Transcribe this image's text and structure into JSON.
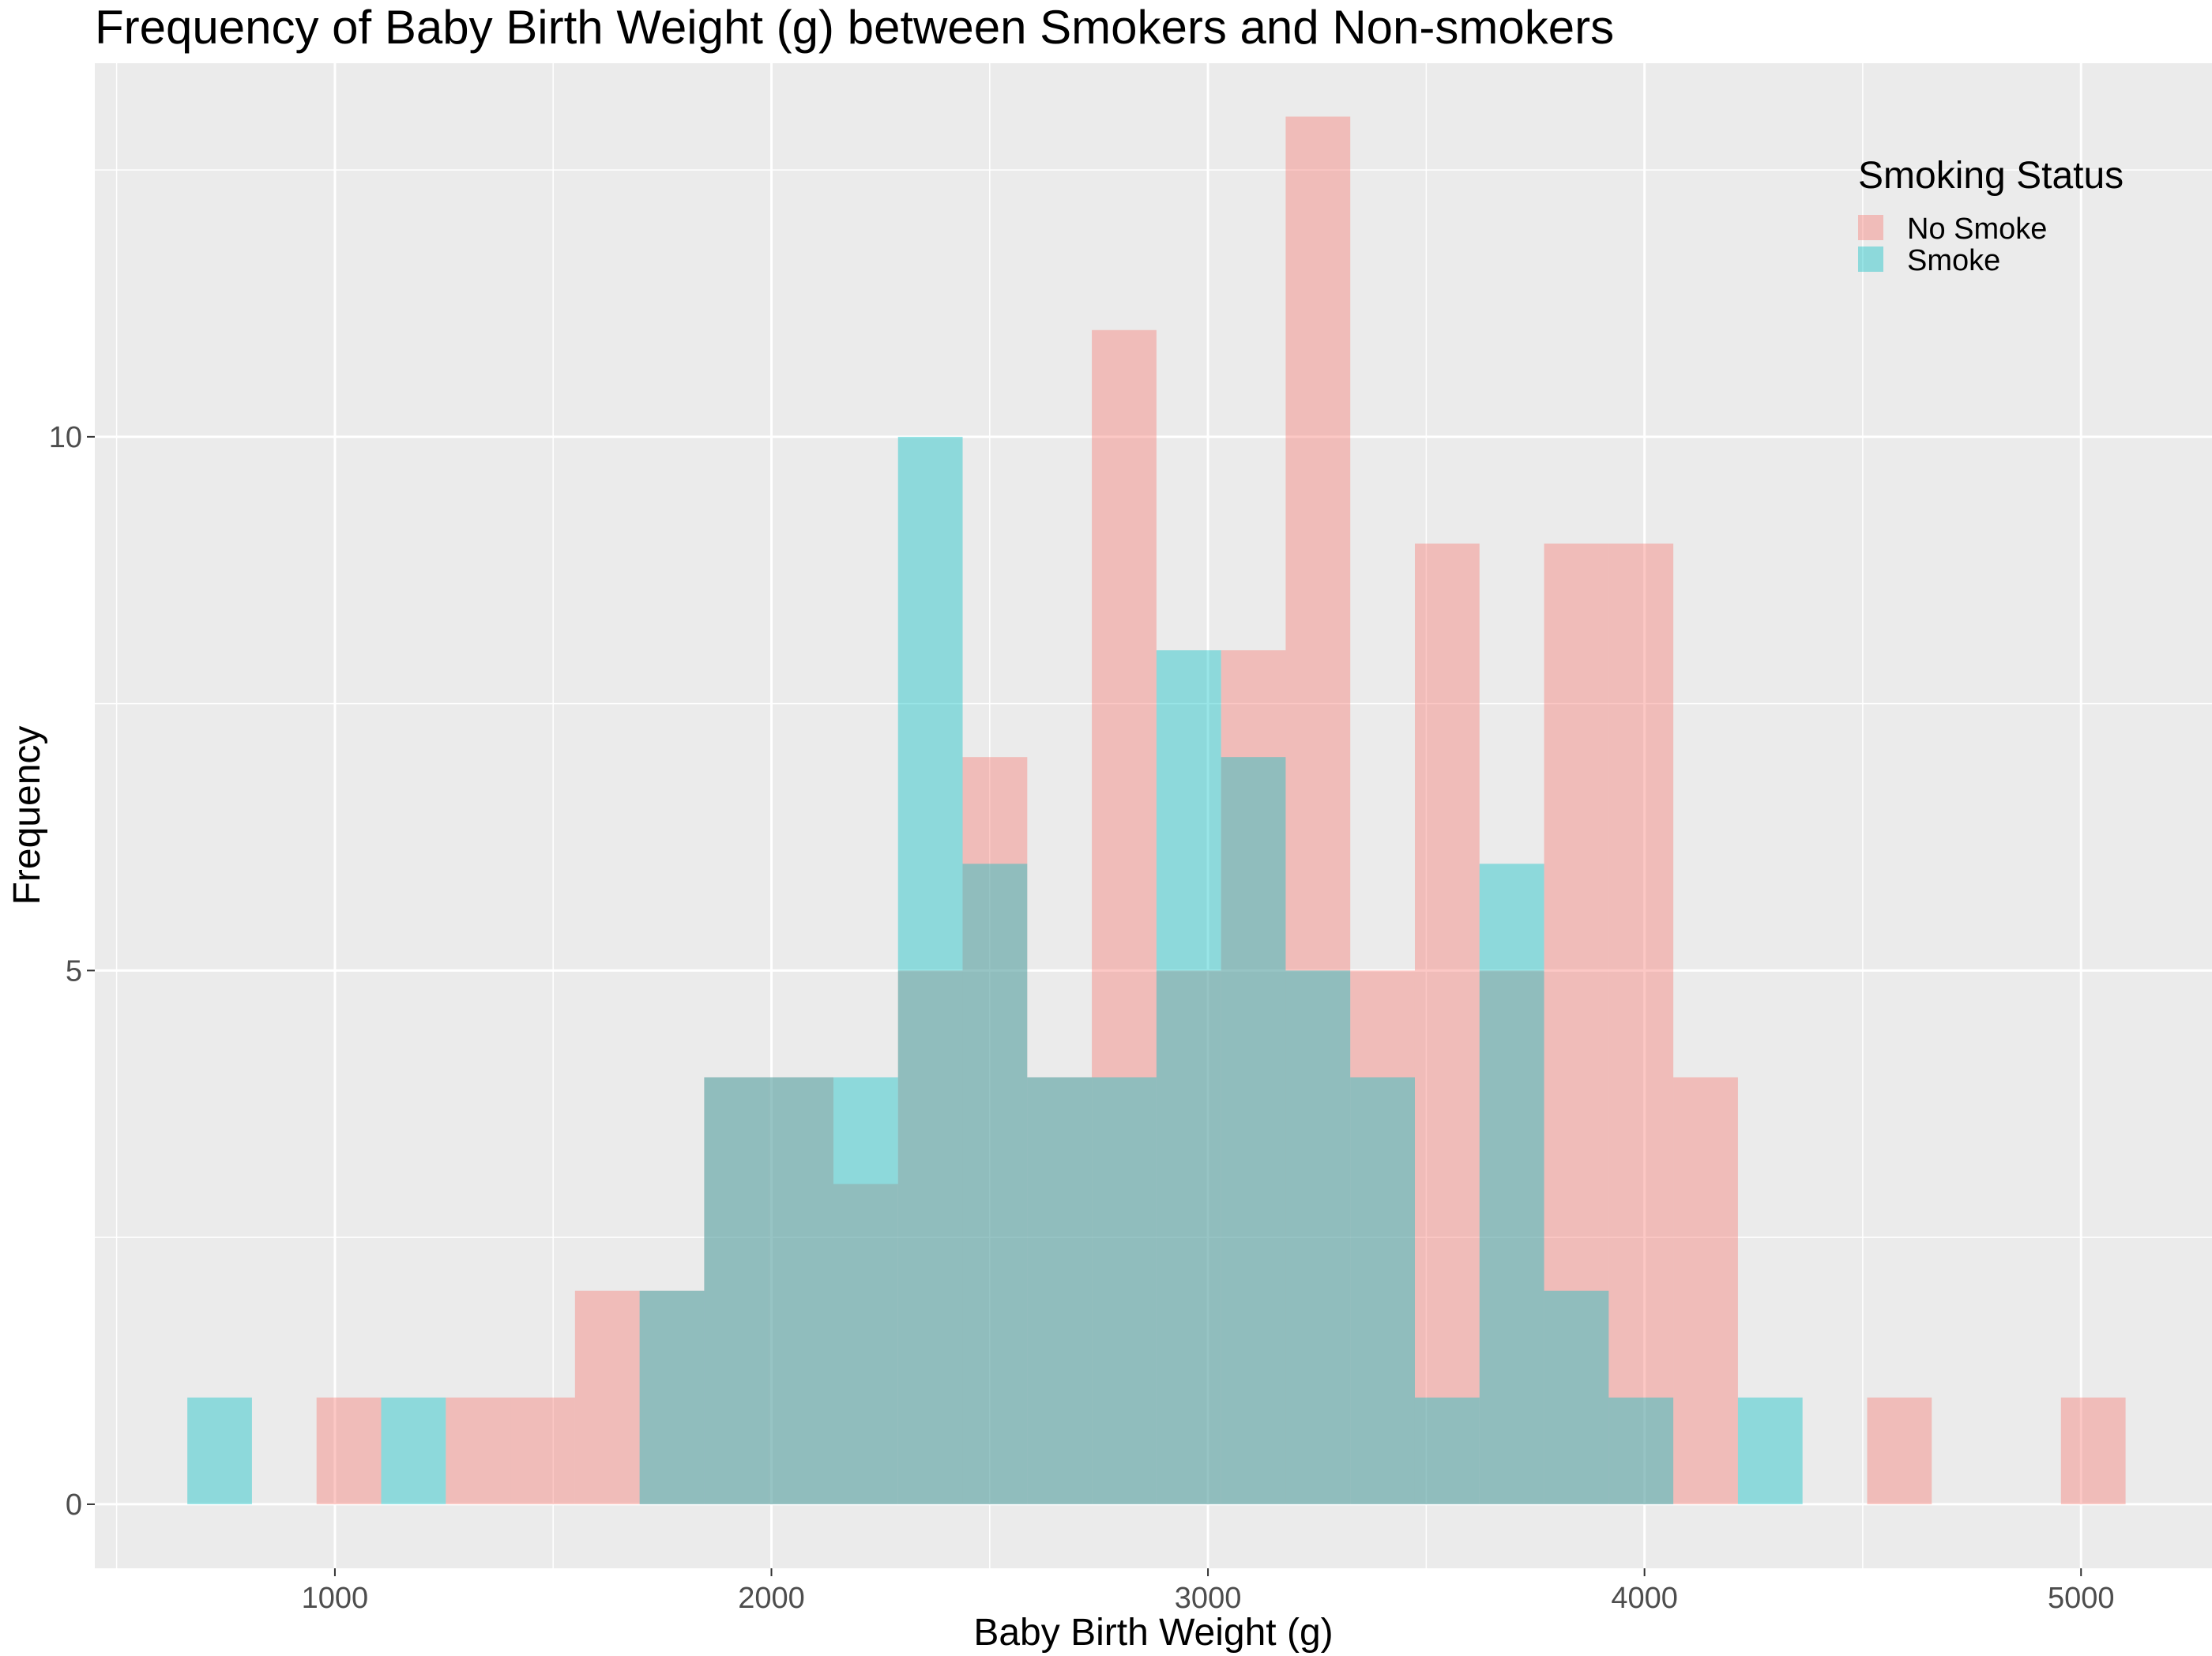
{
  "chart_data": {
    "type": "histogram",
    "title": "Frequency of Baby Birth Weight (g) between Smokers and Non-smokers",
    "xlabel": "Baby Birth Weight (g)",
    "ylabel": "Frequency",
    "xlim": [
      450,
      5300
    ],
    "ylim": [
      -0.6,
      13.5
    ],
    "x_ticks": [
      1000,
      2000,
      3000,
      4000,
      5000
    ],
    "y_ticks": [
      0,
      5,
      10
    ],
    "bin_width": 148,
    "bin_starts": [
      662,
      810,
      958,
      1106,
      1254,
      1402,
      1550,
      1698,
      1846,
      1994,
      2142,
      2290,
      2438,
      2586,
      2734,
      2882,
      3030,
      3178,
      3326,
      3474,
      3622,
      3770,
      3918,
      4066,
      4214,
      4362,
      4510,
      4658,
      4806,
      4954
    ],
    "grid": true,
    "legend": {
      "title": "Smoking Status",
      "position": "top-right"
    },
    "series": [
      {
        "name": "No Smoke",
        "color": "#F8766D",
        "values": [
          0,
          0,
          1,
          0,
          1,
          1,
          2,
          2,
          4,
          4,
          3,
          5,
          7,
          4,
          11,
          5,
          8,
          13,
          5,
          9,
          5,
          9,
          9,
          4,
          0,
          0,
          1,
          0,
          0,
          1
        ]
      },
      {
        "name": "Smoke",
        "color": "#00BFC4",
        "values": [
          1,
          0,
          0,
          1,
          0,
          0,
          0,
          2,
          4,
          4,
          4,
          10,
          6,
          4,
          4,
          8,
          7,
          5,
          4,
          1,
          6,
          2,
          1,
          0,
          1,
          0,
          0,
          0,
          0,
          0
        ]
      }
    ]
  }
}
